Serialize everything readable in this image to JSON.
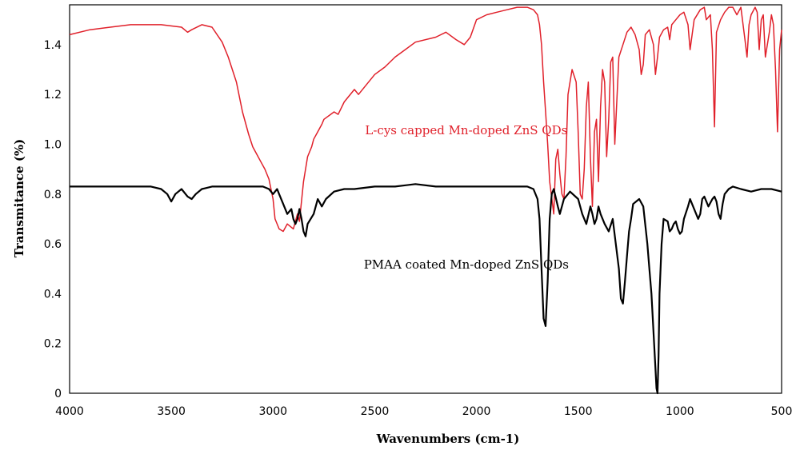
{
  "chart_data": {
    "type": "line",
    "xlabel": "Wavenumbers (cm-1)",
    "ylabel": "Transmitance (%)",
    "xlim": [
      4000,
      500
    ],
    "ylim": [
      0,
      1.56
    ],
    "x_axis_reversed": true,
    "grid": false,
    "legend": "none",
    "xticks": [
      4000,
      3500,
      3000,
      2500,
      2000,
      1500,
      1000,
      500
    ],
    "xtick_labels": [
      "4000",
      "3500",
      "3000",
      "2500",
      "2000",
      "1500",
      "1000",
      "500"
    ],
    "yticks": [
      0,
      0.2,
      0.4,
      0.6,
      0.8,
      1.0,
      1.2,
      1.4
    ],
    "ytick_labels": [
      "0",
      "0.2",
      "0.4",
      "0.6",
      "0.8",
      "1.0",
      "1.2",
      "1.4"
    ],
    "annotations": [
      {
        "text": "L-cys capped Mn-doped ZnS QDs",
        "x": 2050,
        "y": 1.04,
        "color": "#e0202a"
      },
      {
        "text": "PMAA coated Mn-doped ZnS QDs",
        "x": 2050,
        "y": 0.5,
        "color": "#000000"
      }
    ],
    "series": [
      {
        "color": "#e0202a",
        "x": [
          4000,
          3900,
          3800,
          3700,
          3650,
          3550,
          3450,
          3420,
          3400,
          3350,
          3300,
          3250,
          3220,
          3180,
          3150,
          3120,
          3100,
          3080,
          3060,
          3040,
          3020,
          3000,
          2990,
          2970,
          2950,
          2930,
          2900,
          2880,
          2870,
          2850,
          2830,
          2810,
          2800,
          2780,
          2760,
          2750,
          2700,
          2680,
          2650,
          2600,
          2580,
          2550,
          2500,
          2450,
          2400,
          2300,
          2200,
          2150,
          2100,
          2060,
          2030,
          2000,
          1950,
          1900,
          1850,
          1800,
          1750,
          1720,
          1700,
          1690,
          1680,
          1670,
          1660,
          1650,
          1640,
          1620,
          1610,
          1600,
          1590,
          1580,
          1570,
          1560,
          1550,
          1530,
          1510,
          1500,
          1490,
          1480,
          1470,
          1460,
          1450,
          1440,
          1430,
          1420,
          1410,
          1400,
          1390,
          1380,
          1370,
          1360,
          1350,
          1340,
          1330,
          1320,
          1300,
          1280,
          1260,
          1240,
          1220,
          1200,
          1190,
          1180,
          1170,
          1150,
          1130,
          1120,
          1110,
          1100,
          1080,
          1060,
          1050,
          1040,
          1020,
          1000,
          980,
          960,
          950,
          930,
          900,
          880,
          870,
          850,
          840,
          830,
          820,
          800,
          780,
          760,
          740,
          720,
          700,
          680,
          670,
          660,
          650,
          630,
          620,
          610,
          600,
          590,
          580,
          560,
          550,
          540,
          530,
          520,
          510,
          500
        ],
        "y": [
          1.44,
          1.46,
          1.47,
          1.48,
          1.48,
          1.48,
          1.47,
          1.45,
          1.46,
          1.48,
          1.47,
          1.41,
          1.35,
          1.25,
          1.13,
          1.04,
          0.99,
          0.96,
          0.93,
          0.9,
          0.86,
          0.78,
          0.7,
          0.66,
          0.65,
          0.68,
          0.66,
          0.72,
          0.69,
          0.85,
          0.95,
          0.99,
          1.02,
          1.05,
          1.08,
          1.1,
          1.13,
          1.12,
          1.17,
          1.22,
          1.2,
          1.23,
          1.28,
          1.31,
          1.35,
          1.41,
          1.43,
          1.45,
          1.42,
          1.4,
          1.43,
          1.5,
          1.52,
          1.53,
          1.54,
          1.55,
          1.55,
          1.54,
          1.52,
          1.48,
          1.4,
          1.25,
          1.13,
          1.0,
          0.85,
          0.72,
          0.94,
          0.98,
          0.88,
          0.8,
          0.78,
          0.95,
          1.2,
          1.3,
          1.25,
          1.05,
          0.8,
          0.78,
          0.9,
          1.15,
          1.25,
          0.95,
          0.75,
          1.05,
          1.1,
          0.85,
          1.15,
          1.3,
          1.25,
          0.95,
          1.1,
          1.33,
          1.35,
          1.0,
          1.35,
          1.4,
          1.45,
          1.47,
          1.44,
          1.38,
          1.28,
          1.32,
          1.44,
          1.46,
          1.4,
          1.28,
          1.35,
          1.43,
          1.46,
          1.47,
          1.42,
          1.48,
          1.5,
          1.52,
          1.53,
          1.48,
          1.38,
          1.5,
          1.54,
          1.55,
          1.5,
          1.52,
          1.38,
          1.07,
          1.45,
          1.5,
          1.53,
          1.55,
          1.55,
          1.52,
          1.55,
          1.42,
          1.35,
          1.48,
          1.52,
          1.55,
          1.53,
          1.38,
          1.5,
          1.52,
          1.35,
          1.45,
          1.52,
          1.48,
          1.3,
          1.05,
          1.38,
          1.46
        ]
      },
      {
        "color": "#000000",
        "x": [
          4000,
          3800,
          3600,
          3550,
          3520,
          3500,
          3480,
          3450,
          3420,
          3400,
          3380,
          3350,
          3300,
          3200,
          3100,
          3050,
          3020,
          3000,
          2990,
          2980,
          2970,
          2950,
          2930,
          2910,
          2900,
          2890,
          2880,
          2870,
          2860,
          2850,
          2840,
          2830,
          2800,
          2780,
          2760,
          2740,
          2700,
          2650,
          2600,
          2500,
          2400,
          2300,
          2200,
          2100,
          2000,
          1900,
          1800,
          1750,
          1720,
          1700,
          1690,
          1680,
          1670,
          1660,
          1650,
          1640,
          1630,
          1620,
          1600,
          1590,
          1570,
          1550,
          1540,
          1500,
          1480,
          1460,
          1440,
          1430,
          1420,
          1410,
          1400,
          1390,
          1370,
          1350,
          1330,
          1300,
          1290,
          1280,
          1270,
          1260,
          1250,
          1240,
          1230,
          1200,
          1180,
          1160,
          1150,
          1140,
          1130,
          1120,
          1115,
          1110,
          1105,
          1100,
          1090,
          1080,
          1060,
          1050,
          1040,
          1030,
          1020,
          1010,
          1000,
          990,
          980,
          960,
          950,
          940,
          920,
          910,
          900,
          890,
          880,
          860,
          840,
          830,
          820,
          810,
          800,
          790,
          780,
          760,
          740,
          700,
          650,
          600,
          550,
          500
        ],
        "y": [
          0.83,
          0.83,
          0.83,
          0.82,
          0.8,
          0.77,
          0.8,
          0.82,
          0.79,
          0.78,
          0.8,
          0.82,
          0.83,
          0.83,
          0.83,
          0.83,
          0.82,
          0.8,
          0.81,
          0.82,
          0.8,
          0.76,
          0.72,
          0.74,
          0.7,
          0.68,
          0.7,
          0.74,
          0.7,
          0.65,
          0.63,
          0.68,
          0.72,
          0.78,
          0.75,
          0.78,
          0.81,
          0.82,
          0.82,
          0.83,
          0.83,
          0.84,
          0.83,
          0.83,
          0.83,
          0.83,
          0.83,
          0.83,
          0.82,
          0.78,
          0.7,
          0.5,
          0.3,
          0.27,
          0.45,
          0.7,
          0.8,
          0.82,
          0.75,
          0.72,
          0.78,
          0.8,
          0.81,
          0.78,
          0.72,
          0.68,
          0.75,
          0.72,
          0.68,
          0.7,
          0.75,
          0.72,
          0.68,
          0.65,
          0.7,
          0.5,
          0.38,
          0.36,
          0.45,
          0.55,
          0.65,
          0.7,
          0.76,
          0.78,
          0.75,
          0.6,
          0.5,
          0.4,
          0.25,
          0.1,
          0.02,
          0.0,
          0.15,
          0.4,
          0.6,
          0.7,
          0.69,
          0.65,
          0.66,
          0.68,
          0.69,
          0.66,
          0.64,
          0.65,
          0.7,
          0.75,
          0.78,
          0.76,
          0.72,
          0.7,
          0.72,
          0.78,
          0.79,
          0.75,
          0.78,
          0.79,
          0.77,
          0.72,
          0.7,
          0.76,
          0.8,
          0.82,
          0.83,
          0.82,
          0.81,
          0.82,
          0.82,
          0.81
        ]
      }
    ]
  }
}
